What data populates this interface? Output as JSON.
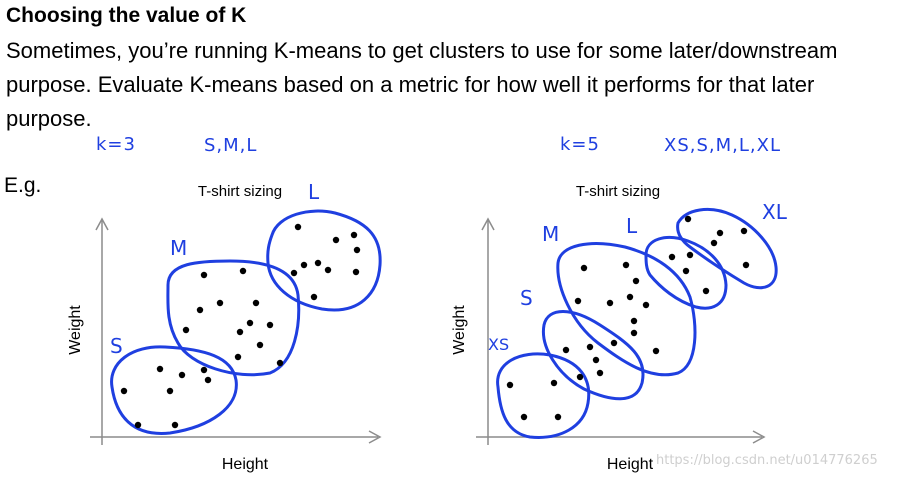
{
  "slide": {
    "title": "Choosing the value of K",
    "body": "Sometimes, you’re running K-means to get clusters to use for some later/downstream purpose. Evaluate K-means based on a metric for how well it performs for that later purpose.",
    "eg_label": "E.g."
  },
  "handwriting": {
    "left_k": "k=3",
    "left_sizes": "S,M,L",
    "right_k": "k=5",
    "right_sizes": "XS,S,M,L,XL"
  },
  "charts": {
    "left": {
      "title": "T-shirt sizing",
      "xlabel": "Height",
      "ylabel": "Weight",
      "cluster_labels": [
        "S",
        "M",
        "L"
      ]
    },
    "right": {
      "title": "T-shirt sizing",
      "xlabel": "Height",
      "ylabel": "Weight",
      "cluster_labels": [
        "XS",
        "S",
        "M",
        "L",
        "XL"
      ]
    }
  },
  "watermark": "https://blog.csdn.net/u014776265",
  "colors": {
    "ink": "#1f3fe0",
    "axis": "#8c8c8c",
    "points": "#000000"
  }
}
